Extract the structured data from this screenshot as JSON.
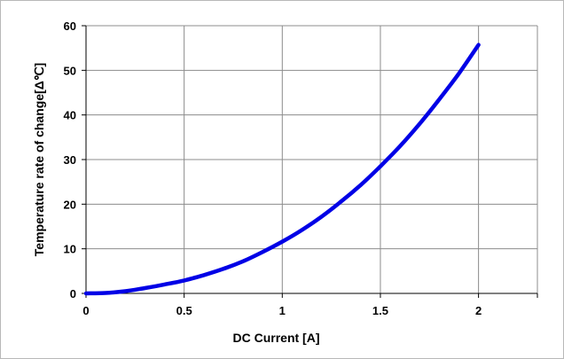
{
  "chart_data": {
    "type": "line",
    "title": "",
    "xlabel": "DC Current [A]",
    "ylabel": "Temperature rate of change[Δ℃]",
    "xlim": [
      0,
      2.3
    ],
    "ylim": [
      0,
      60
    ],
    "x_ticks": [
      0,
      0.5,
      1,
      1.5,
      2
    ],
    "x_tick_labels": [
      "0",
      "0.5",
      "1",
      "1.5",
      "2"
    ],
    "y_ticks": [
      0,
      10,
      20,
      30,
      40,
      50,
      60
    ],
    "y_tick_labels": [
      "0",
      "10",
      "20",
      "30",
      "40",
      "50",
      "60"
    ],
    "grid": true,
    "legend": "none",
    "series": [
      {
        "color": "#0000e6",
        "x": [
          0,
          0.1,
          0.2,
          0.3,
          0.4,
          0.5,
          0.6,
          0.7,
          0.8,
          0.9,
          1.0,
          1.1,
          1.2,
          1.3,
          1.4,
          1.5,
          1.6,
          1.7,
          1.8,
          1.9,
          2.0
        ],
        "y": [
          0,
          0.1,
          0.5,
          1.2,
          2.0,
          2.9,
          4.1,
          5.5,
          7.2,
          9.3,
          11.6,
          14.2,
          17.2,
          20.6,
          24.3,
          28.5,
          33.0,
          38.0,
          43.5,
          49.3,
          55.7
        ]
      }
    ]
  }
}
